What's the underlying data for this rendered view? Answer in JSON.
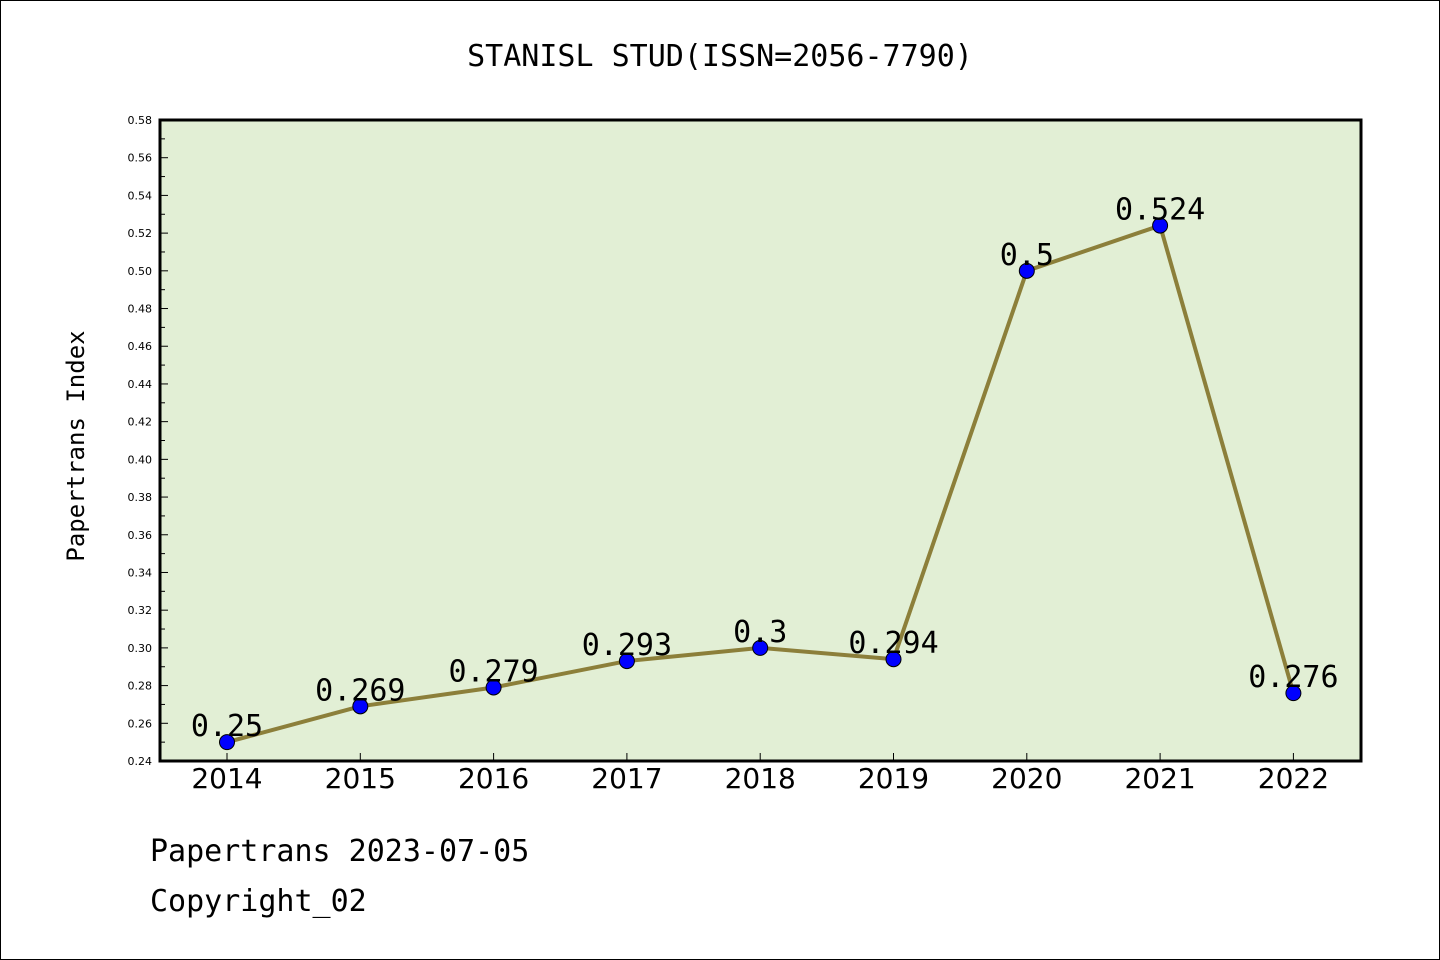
{
  "chart_data": {
    "type": "line",
    "title": "STANISL STUD(ISSN=2056-7790)",
    "xlabel": "",
    "ylabel": "Papertrans Index",
    "categories": [
      "2014",
      "2015",
      "2016",
      "2017",
      "2018",
      "2019",
      "2020",
      "2021",
      "2022"
    ],
    "values": [
      0.25,
      0.269,
      0.279,
      0.293,
      0.3,
      0.294,
      0.5,
      0.524,
      0.276
    ],
    "data_labels": [
      "0.25",
      "0.269",
      "0.279",
      "0.293",
      "0.3",
      "0.294",
      "0.5",
      "0.524",
      "0.276"
    ],
    "ylim": [
      0.24,
      0.58
    ],
    "yticks": [
      "0.24",
      "0.26",
      "0.28",
      "0.30",
      "0.32",
      "0.34",
      "0.36",
      "0.38",
      "0.40",
      "0.42",
      "0.44",
      "0.46",
      "0.48",
      "0.50",
      "0.52",
      "0.54",
      "0.56",
      "0.58"
    ],
    "grid": false,
    "legend": "none",
    "colors": {
      "plot_background": "#e2efd5",
      "line": "#8c7f3a",
      "marker": "#0000ff",
      "axes": "#000000"
    }
  },
  "footer": {
    "line1": "Papertrans 2023-07-05",
    "line2": "Copyright_02"
  }
}
